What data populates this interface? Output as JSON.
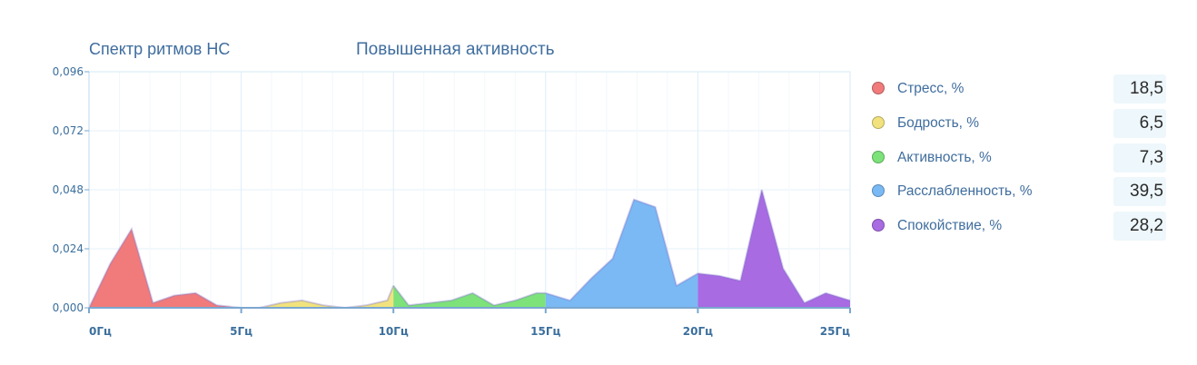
{
  "chart_data": {
    "type": "area",
    "title": "Спектр ритмов НС",
    "subtitle": "Повышенная активность",
    "xlabel": "",
    "ylabel": "",
    "xlim": [
      0,
      25
    ],
    "ylim": [
      0,
      0.096
    ],
    "y_ticks": [
      "0,000",
      "0,024",
      "0,048",
      "0,072",
      "0,096"
    ],
    "x_ticks": [
      "0Гц",
      "5Гц",
      "10Гц",
      "15Гц",
      "20Гц",
      "25Гц"
    ],
    "grid": true,
    "legend_position": "right",
    "series": [
      {
        "name": "Стресс, %",
        "color": "#f17b7b",
        "value": "18,5",
        "x": [
          0,
          0.7,
          1.4,
          2.1,
          2.8,
          3.5,
          4.2,
          5.0
        ],
        "y": [
          -0.001,
          0.018,
          0.032,
          0.002,
          0.005,
          0.006,
          0.001,
          0.0
        ]
      },
      {
        "name": "Бодрость, %",
        "color": "#f2e27e",
        "value": "6,5",
        "x": [
          5.0,
          5.6,
          6.3,
          7.0,
          7.7,
          8.4,
          9.1,
          9.8,
          10.0
        ],
        "y": [
          0.0,
          0.0,
          0.002,
          0.003,
          0.001,
          -0.001,
          0.001,
          0.003,
          0.009
        ]
      },
      {
        "name": "Активность, %",
        "color": "#7de27a",
        "value": "7,3",
        "x": [
          10.0,
          10.5,
          11.2,
          11.9,
          12.6,
          13.3,
          14.0,
          14.7,
          15.0
        ],
        "y": [
          0.009,
          0.001,
          0.002,
          0.003,
          0.006,
          0.001,
          0.003,
          0.006,
          0.006
        ]
      },
      {
        "name": "Расслабленность, %",
        "color": "#7ab9f4",
        "value": "39,5",
        "x": [
          15.0,
          15.8,
          16.5,
          17.2,
          17.9,
          18.6,
          19.3,
          20.0
        ],
        "y": [
          0.006,
          0.003,
          0.012,
          0.02,
          0.044,
          0.041,
          0.009,
          0.014
        ]
      },
      {
        "name": "Спокойствие, %",
        "color": "#a86be2",
        "value": "28,2",
        "x": [
          20.0,
          20.7,
          21.4,
          22.1,
          22.8,
          23.5,
          24.2,
          25.0
        ],
        "y": [
          0.014,
          0.013,
          0.011,
          0.048,
          0.016,
          0.002,
          0.006,
          0.003
        ]
      }
    ]
  }
}
